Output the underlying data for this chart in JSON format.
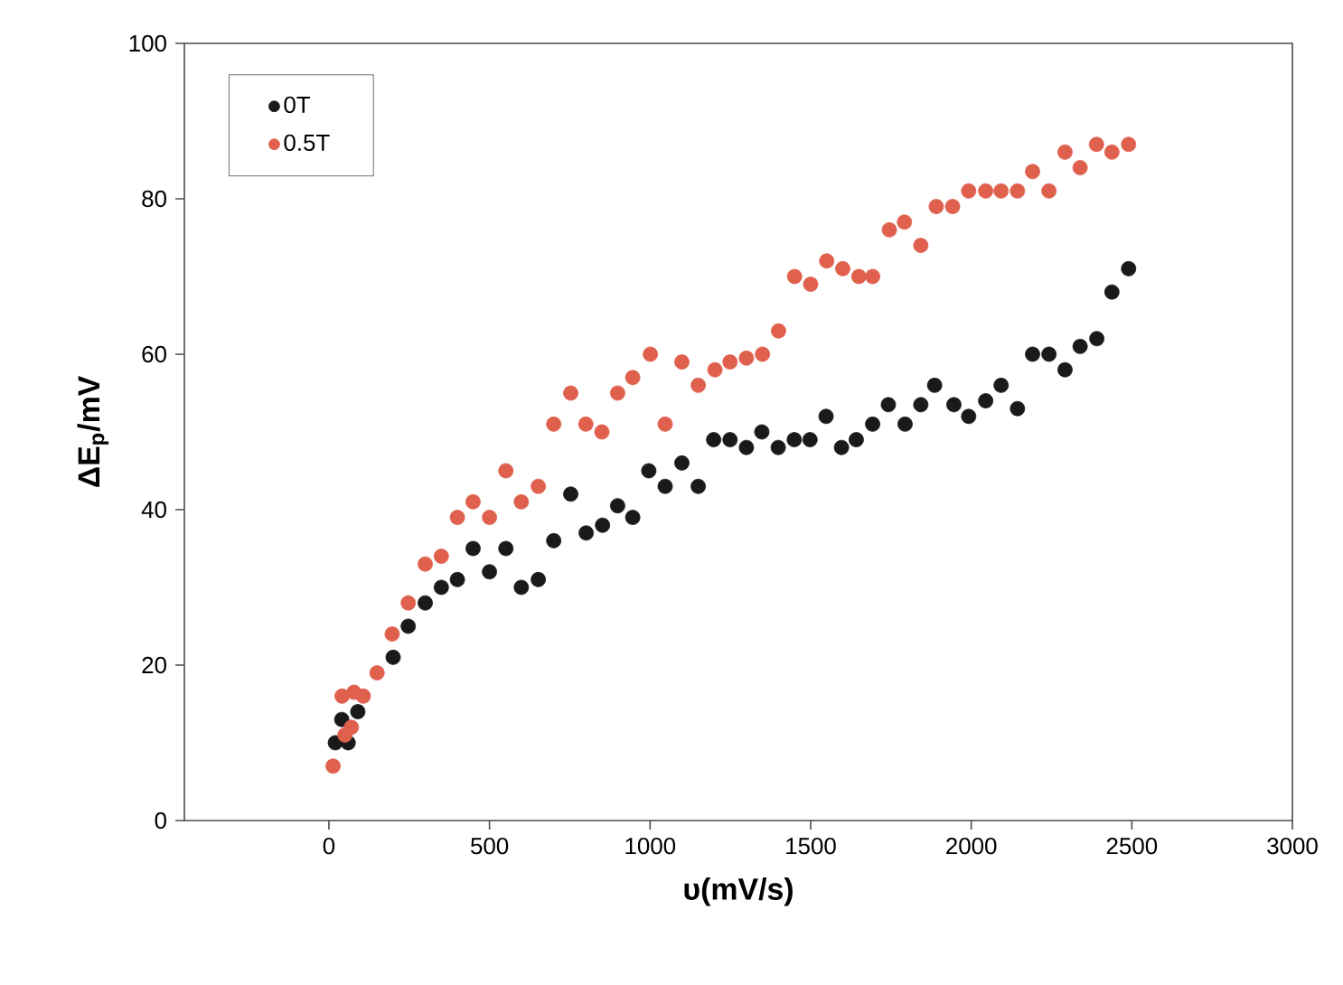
{
  "chart_data": {
    "type": "scatter",
    "xlabel": "υ(mV/s)",
    "ylabel": "ΔE$_{p}$/mV",
    "xlim": [
      -450,
      3000
    ],
    "ylim": [
      0,
      100
    ],
    "xticks": [
      0,
      500,
      1000,
      1500,
      2000,
      2500,
      3000
    ],
    "yticks": [
      0,
      20,
      40,
      60,
      80,
      100
    ],
    "grid": false,
    "legend": "top left",
    "marker": "circle",
    "series": [
      {
        "name": "0T",
        "color": "#1a1a1a",
        "x": [
          20,
          40,
          60,
          70,
          90,
          200,
          247,
          300,
          350,
          400,
          449,
          500,
          551,
          599,
          652,
          700,
          753,
          801,
          852,
          899,
          946,
          996,
          1047,
          1099,
          1150,
          1198,
          1249,
          1300,
          1348,
          1399,
          1449,
          1498,
          1548,
          1596,
          1642,
          1693,
          1742,
          1794,
          1843,
          1886,
          1946,
          1992,
          2045,
          2093,
          2144,
          2191,
          2242,
          2292,
          2339,
          2391,
          2438,
          2490
        ],
        "values": [
          10,
          13,
          10,
          null,
          14,
          21,
          25,
          28,
          30,
          31,
          35,
          32,
          35,
          30,
          31,
          36,
          42,
          37,
          38,
          40.5,
          39,
          45,
          43,
          46,
          43,
          49,
          49,
          48,
          50,
          48,
          49,
          49,
          52,
          48,
          49,
          51,
          53.5,
          51,
          53.5,
          56,
          53.5,
          52,
          54,
          56,
          53,
          60,
          60,
          58,
          61,
          62,
          68,
          71
        ]
      },
      {
        "name": "0.5T",
        "color": "#e0604e",
        "x": [
          13,
          41,
          50,
          70,
          78,
          107,
          150,
          197,
          247,
          300,
          350,
          400,
          449,
          500,
          551,
          599,
          652,
          700,
          753,
          800,
          850,
          899,
          946,
          1001,
          1047,
          1099,
          1150,
          1202,
          1249,
          1300,
          1350,
          1400,
          1450,
          1500,
          1550,
          1600,
          1650,
          1693,
          1745,
          1792,
          1843,
          1891,
          1942,
          1992,
          2045,
          2093,
          2144,
          2191,
          2242,
          2292,
          2339,
          2390,
          2438,
          2490
        ],
        "values": [
          7,
          16,
          11,
          12,
          16.5,
          16,
          19,
          24,
          28,
          33,
          34,
          39,
          41,
          39,
          45,
          41,
          43,
          51,
          55,
          51,
          50,
          55,
          57,
          60,
          51,
          59,
          56,
          58,
          59,
          59.5,
          60,
          63,
          70,
          69,
          72,
          71,
          70,
          70,
          76,
          77,
          74,
          79,
          79,
          81,
          81,
          81,
          81,
          83.5,
          81,
          86,
          84,
          87,
          86,
          87
        ]
      }
    ]
  }
}
